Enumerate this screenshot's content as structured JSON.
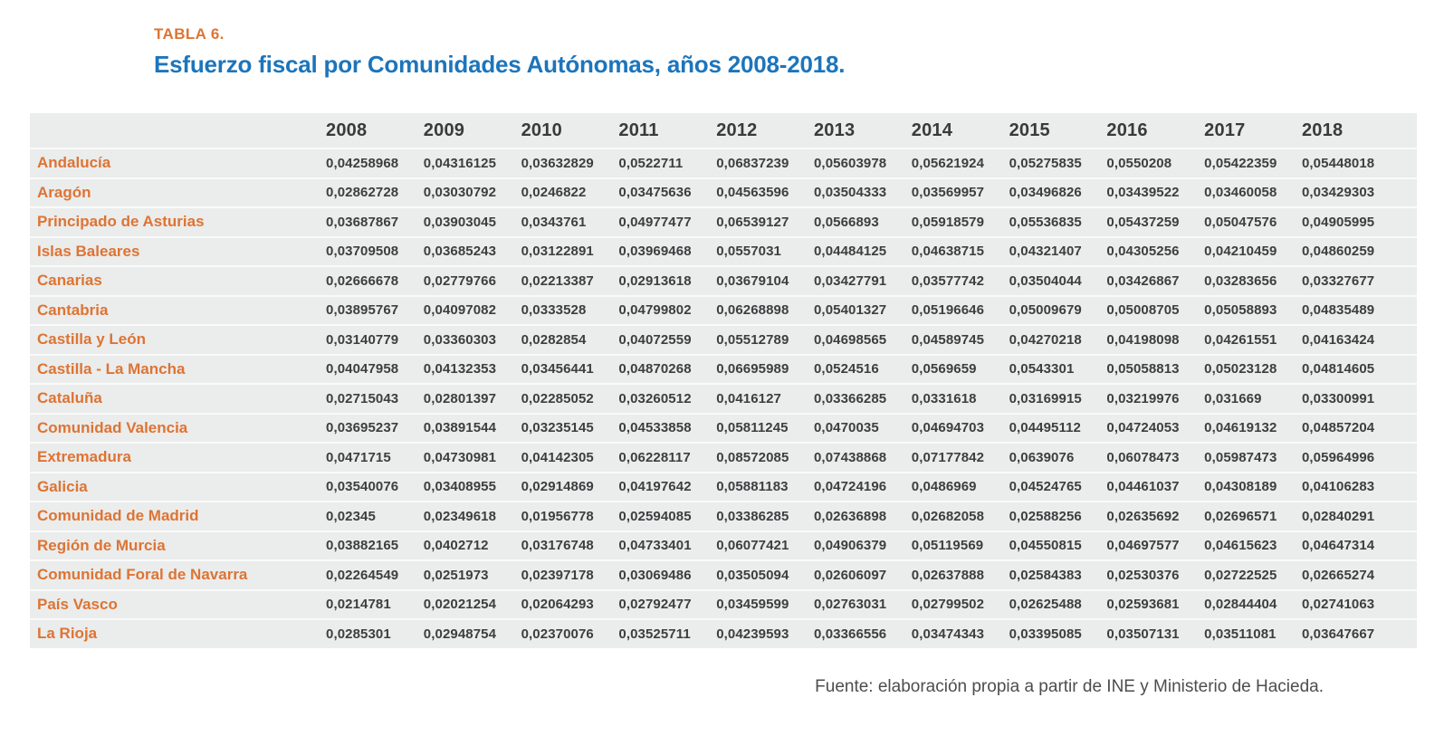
{
  "title": {
    "label": "TABLA 6.",
    "heading": "Esfuerzo fiscal por Comunidades Autónomas, años 2008-2018."
  },
  "table": {
    "years": [
      "2008",
      "2009",
      "2010",
      "2011",
      "2012",
      "2013",
      "2014",
      "2015",
      "2016",
      "2017",
      "2018"
    ],
    "rows": [
      {
        "name": "Andalucía",
        "values": [
          "0,04258968",
          "0,04316125",
          "0,03632829",
          "0,0522711",
          "0,06837239",
          "0,05603978",
          "0,05621924",
          "0,05275835",
          "0,0550208",
          "0,05422359",
          "0,05448018"
        ]
      },
      {
        "name": "Aragón",
        "values": [
          "0,02862728",
          "0,03030792",
          "0,0246822",
          "0,03475636",
          "0,04563596",
          "0,03504333",
          "0,03569957",
          "0,03496826",
          "0,03439522",
          "0,03460058",
          "0,03429303"
        ]
      },
      {
        "name": "Principado de Asturias",
        "values": [
          "0,03687867",
          "0,03903045",
          "0,0343761",
          "0,04977477",
          "0,06539127",
          "0,0566893",
          "0,05918579",
          "0,05536835",
          "0,05437259",
          "0,05047576",
          "0,04905995"
        ]
      },
      {
        "name": "Islas Baleares",
        "values": [
          "0,03709508",
          "0,03685243",
          "0,03122891",
          "0,03969468",
          "0,0557031",
          "0,04484125",
          "0,04638715",
          "0,04321407",
          "0,04305256",
          "0,04210459",
          "0,04860259"
        ]
      },
      {
        "name": "Canarias",
        "values": [
          "0,02666678",
          "0,02779766",
          "0,02213387",
          "0,02913618",
          "0,03679104",
          "0,03427791",
          "0,03577742",
          "0,03504044",
          "0,03426867",
          "0,03283656",
          "0,03327677"
        ]
      },
      {
        "name": "Cantabria",
        "values": [
          "0,03895767",
          "0,04097082",
          "0,0333528",
          "0,04799802",
          "0,06268898",
          "0,05401327",
          "0,05196646",
          "0,05009679",
          "0,05008705",
          "0,05058893",
          "0,04835489"
        ]
      },
      {
        "name": "Castilla y León",
        "values": [
          "0,03140779",
          "0,03360303",
          "0,0282854",
          "0,04072559",
          "0,05512789",
          "0,04698565",
          "0,04589745",
          "0,04270218",
          "0,04198098",
          "0,04261551",
          "0,04163424"
        ]
      },
      {
        "name": "Castilla - La Mancha",
        "values": [
          "0,04047958",
          "0,04132353",
          "0,03456441",
          "0,04870268",
          "0,06695989",
          "0,0524516",
          "0,0569659",
          "0,0543301",
          "0,05058813",
          "0,05023128",
          "0,04814605"
        ]
      },
      {
        "name": "Cataluña",
        "values": [
          "0,02715043",
          "0,02801397",
          "0,02285052",
          "0,03260512",
          "0,0416127",
          "0,03366285",
          "0,0331618",
          "0,03169915",
          "0,03219976",
          "0,031669",
          "0,03300991"
        ]
      },
      {
        "name": "Comunidad Valencia",
        "values": [
          "0,03695237",
          "0,03891544",
          "0,03235145",
          "0,04533858",
          "0,05811245",
          "0,0470035",
          "0,04694703",
          "0,04495112",
          "0,04724053",
          "0,04619132",
          "0,04857204"
        ]
      },
      {
        "name": "Extremadura",
        "values": [
          "0,0471715",
          "0,04730981",
          "0,04142305",
          "0,06228117",
          "0,08572085",
          "0,07438868",
          "0,07177842",
          "0,0639076",
          "0,06078473",
          "0,05987473",
          "0,05964996"
        ]
      },
      {
        "name": "Galicia",
        "values": [
          "0,03540076",
          "0,03408955",
          "0,02914869",
          "0,04197642",
          "0,05881183",
          "0,04724196",
          "0,0486969",
          "0,04524765",
          "0,04461037",
          "0,04308189",
          "0,04106283"
        ]
      },
      {
        "name": "Comunidad de Madrid",
        "values": [
          "0,02345",
          "0,02349618",
          "0,01956778",
          "0,02594085",
          "0,03386285",
          "0,02636898",
          "0,02682058",
          "0,02588256",
          "0,02635692",
          "0,02696571",
          "0,02840291"
        ]
      },
      {
        "name": "Región de Murcia",
        "values": [
          "0,03882165",
          "0,0402712",
          "0,03176748",
          "0,04733401",
          "0,06077421",
          "0,04906379",
          "0,05119569",
          "0,04550815",
          "0,04697577",
          "0,04615623",
          "0,04647314"
        ]
      },
      {
        "name": "Comunidad Foral de Navarra",
        "values": [
          "0,02264549",
          "0,0251973",
          "0,02397178",
          "0,03069486",
          "0,03505094",
          "0,02606097",
          "0,02637888",
          "0,02584383",
          "0,02530376",
          "0,02722525",
          "0,02665274"
        ]
      },
      {
        "name": "País Vasco",
        "values": [
          "0,0214781",
          "0,02021254",
          "0,02064293",
          "0,02792477",
          "0,03459599",
          "0,02763031",
          "0,02799502",
          "0,02625488",
          "0,02593681",
          "0,02844404",
          "0,02741063"
        ]
      },
      {
        "name": "La Rioja",
        "values": [
          "0,0285301",
          "0,02948754",
          "0,02370076",
          "0,03525711",
          "0,04239593",
          "0,03366556",
          "0,03474343",
          "0,03395085",
          "0,03507131",
          "0,03511081",
          "0,03647667"
        ]
      }
    ]
  },
  "footer": {
    "source": "Fuente: elaboración propia a partir de INE y Ministerio de Hacieda."
  },
  "colors": {
    "accent_orange": "#DD7433",
    "title_blue": "#1C75BC",
    "row_band_gray": "#EBECEC",
    "value_text": "#3E3E40"
  }
}
